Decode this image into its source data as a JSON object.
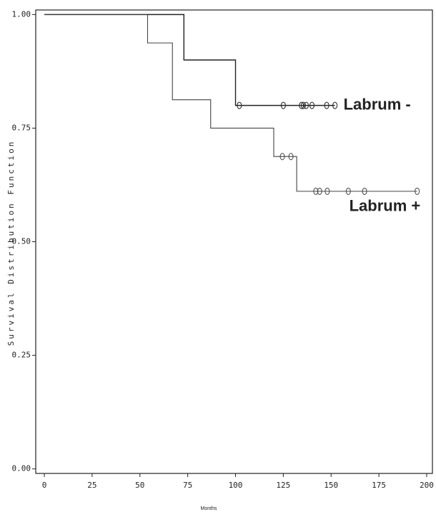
{
  "chart_data": {
    "type": "step",
    "xlabel": "Months",
    "ylabel": "Survival Distribution Function",
    "xlim": [
      -4.5,
      203
    ],
    "ylim": [
      -0.01,
      1.01
    ],
    "xticks": [
      0,
      25,
      50,
      75,
      100,
      125,
      150,
      175,
      200
    ],
    "yticks": [
      {
        "value": 0,
        "label": "0.00"
      },
      {
        "value": 0.25,
        "label": "0.25"
      },
      {
        "value": 0.5,
        "label": "0.50"
      },
      {
        "value": 0.75,
        "label": "0.75"
      },
      {
        "value": 1,
        "label": "1.00"
      }
    ],
    "series": [
      {
        "name": "Labrum -",
        "color": "#222222",
        "x": [
          0,
          73,
          100,
          152
        ],
        "values": [
          1.0,
          0.9,
          0.8,
          0.8
        ],
        "censored": {
          "x": [
            102,
            125,
            134.5,
            135.5,
            137,
            140,
            147.7,
            152
          ],
          "values": [
            0.8,
            0.8,
            0.8,
            0.8,
            0.8,
            0.8,
            0.8,
            0.8
          ]
        }
      },
      {
        "name": "Labrum +",
        "color": "#444444",
        "x": [
          0,
          54,
          67,
          87,
          120,
          132,
          195
        ],
        "values": [
          1.0,
          0.9375,
          0.8125,
          0.75,
          0.6875,
          0.611,
          0.611
        ],
        "censored": {
          "x": [
            124.5,
            129,
            142,
            144,
            148,
            159,
            167.5,
            195
          ],
          "values": [
            0.6875,
            0.6875,
            0.611,
            0.611,
            0.611,
            0.611,
            0.611,
            0.611
          ]
        }
      }
    ]
  }
}
